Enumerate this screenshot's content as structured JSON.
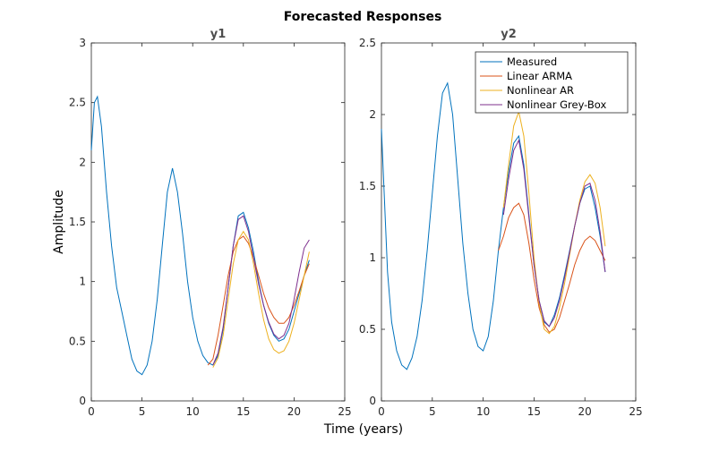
{
  "chart_data": {
    "type": "line",
    "title": "Forecasted Responses",
    "xlabel": "Time (years)",
    "ylabel": "Amplitude",
    "legend": {
      "placement": "top-right of y2 panel",
      "entries": [
        "Measured",
        "Linear ARMA",
        "Nonlinear AR",
        "Nonlinear Grey-Box"
      ]
    },
    "colors": {
      "Measured": "#0072bd",
      "Linear ARMA": "#d95319",
      "Nonlinear AR": "#edb120",
      "Nonlinear Grey-Box": "#7e2f8e"
    },
    "panels": [
      {
        "title": "y1",
        "xlim": [
          0,
          25
        ],
        "ylim": [
          0,
          3
        ],
        "xticks": [
          "0",
          "5",
          "10",
          "15",
          "20",
          "25"
        ],
        "yticks": [
          "0",
          "0.5",
          "1",
          "1.5",
          "2",
          "2.5",
          "3"
        ],
        "series": [
          {
            "name": "Measured",
            "x": [
              0,
              0.3,
              0.6,
              1,
              1.5,
              2,
              2.5,
              3,
              3.5,
              4,
              4.5,
              5,
              5.5,
              6,
              6.5,
              7,
              7.5,
              8,
              8.5,
              9,
              9.5,
              10,
              10.5,
              11,
              11.5,
              12,
              12.5,
              13,
              13.5,
              14,
              14.5,
              15,
              15.5,
              16,
              16.5,
              17,
              17.5,
              18,
              18.5,
              19,
              19.5,
              20,
              20.5,
              21,
              21.5
            ],
            "y": [
              2.1,
              2.5,
              2.55,
              2.3,
              1.75,
              1.3,
              0.95,
              0.75,
              0.55,
              0.35,
              0.25,
              0.22,
              0.3,
              0.5,
              0.85,
              1.3,
              1.75,
              1.95,
              1.75,
              1.4,
              1.0,
              0.7,
              0.5,
              0.38,
              0.32,
              0.3,
              0.38,
              0.6,
              0.95,
              1.3,
              1.55,
              1.58,
              1.45,
              1.25,
              1.0,
              0.8,
              0.65,
              0.55,
              0.5,
              0.52,
              0.6,
              0.75,
              0.9,
              1.05,
              1.18
            ]
          },
          {
            "name": "Linear ARMA",
            "x": [
              11.5,
              12,
              12.5,
              13,
              13.5,
              14,
              14.5,
              15,
              15.5,
              16,
              16.5,
              17,
              17.5,
              18,
              18.5,
              19,
              19.5,
              20,
              20.5,
              21,
              21.5
            ],
            "y": [
              0.3,
              0.35,
              0.55,
              0.8,
              1.05,
              1.25,
              1.35,
              1.38,
              1.32,
              1.2,
              1.05,
              0.9,
              0.78,
              0.7,
              0.65,
              0.65,
              0.7,
              0.8,
              0.92,
              1.05,
              1.15
            ]
          },
          {
            "name": "Nonlinear AR",
            "x": [
              12,
              12.5,
              13,
              13.5,
              14,
              14.5,
              15,
              15.5,
              16,
              16.5,
              17,
              17.5,
              18,
              18.5,
              19,
              19.5,
              20,
              20.5,
              21,
              21.5
            ],
            "y": [
              0.28,
              0.36,
              0.55,
              0.85,
              1.15,
              1.35,
              1.42,
              1.35,
              1.15,
              0.9,
              0.68,
              0.52,
              0.43,
              0.4,
              0.42,
              0.5,
              0.65,
              0.85,
              1.05,
              1.25
            ]
          },
          {
            "name": "Nonlinear Grey-Box",
            "x": [
              12,
              12.5,
              13,
              13.5,
              14,
              14.5,
              15,
              15.5,
              16,
              16.5,
              17,
              17.5,
              18,
              18.5,
              19,
              19.5,
              20,
              20.5,
              21,
              21.5
            ],
            "y": [
              0.3,
              0.4,
              0.62,
              0.95,
              1.3,
              1.52,
              1.55,
              1.42,
              1.2,
              0.98,
              0.8,
              0.66,
              0.56,
              0.52,
              0.55,
              0.65,
              0.85,
              1.08,
              1.28,
              1.35
            ]
          }
        ]
      },
      {
        "title": "y2",
        "xlim": [
          0,
          25
        ],
        "ylim": [
          0,
          2.5
        ],
        "xticks": [
          "0",
          "5",
          "10",
          "15",
          "20",
          "25"
        ],
        "yticks": [
          "0",
          "0.5",
          "1",
          "1.5",
          "2",
          "2.5"
        ],
        "series": [
          {
            "name": "Measured",
            "x": [
              0,
              0.3,
              0.6,
              1,
              1.5,
              2,
              2.5,
              3,
              3.5,
              4,
              4.5,
              5,
              5.5,
              6,
              6.5,
              7,
              7.5,
              8,
              8.5,
              9,
              9.5,
              10,
              10.5,
              11,
              11.5,
              12,
              12.5,
              13,
              13.5,
              14,
              14.5,
              15,
              15.5,
              16,
              16.5,
              17,
              17.5,
              18,
              18.5,
              19,
              19.5,
              20,
              20.5,
              21,
              21.5,
              22
            ],
            "y": [
              1.9,
              1.4,
              0.9,
              0.55,
              0.35,
              0.25,
              0.22,
              0.3,
              0.45,
              0.7,
              1.05,
              1.45,
              1.85,
              2.15,
              2.22,
              2.0,
              1.55,
              1.1,
              0.75,
              0.5,
              0.38,
              0.35,
              0.45,
              0.7,
              1.05,
              1.35,
              1.6,
              1.8,
              1.85,
              1.65,
              1.3,
              0.95,
              0.7,
              0.55,
              0.52,
              0.6,
              0.72,
              0.88,
              1.05,
              1.22,
              1.38,
              1.48,
              1.5,
              1.35,
              1.15,
              0.9
            ]
          },
          {
            "name": "Linear ARMA",
            "x": [
              11.5,
              12,
              12.5,
              13,
              13.5,
              14,
              14.5,
              15,
              15.5,
              16,
              16.5,
              17,
              17.5,
              18,
              18.5,
              19,
              19.5,
              20,
              20.5,
              21,
              21.5,
              22
            ],
            "y": [
              1.05,
              1.15,
              1.28,
              1.35,
              1.38,
              1.3,
              1.1,
              0.85,
              0.65,
              0.53,
              0.48,
              0.5,
              0.58,
              0.7,
              0.82,
              0.95,
              1.05,
              1.12,
              1.15,
              1.12,
              1.05,
              0.98
            ]
          },
          {
            "name": "Nonlinear AR",
            "x": [
              12,
              12.5,
              13,
              13.5,
              14,
              14.5,
              15,
              15.5,
              16,
              16.5,
              17,
              17.5,
              18,
              18.5,
              19,
              19.5,
              20,
              20.5,
              21,
              21.5,
              22
            ],
            "y": [
              1.35,
              1.65,
              1.92,
              2.02,
              1.85,
              1.45,
              1.0,
              0.68,
              0.5,
              0.47,
              0.52,
              0.65,
              0.82,
              1.02,
              1.22,
              1.4,
              1.53,
              1.58,
              1.52,
              1.35,
              1.08
            ]
          },
          {
            "name": "Nonlinear Grey-Box",
            "x": [
              12,
              12.5,
              13,
              13.5,
              14,
              14.5,
              15,
              15.5,
              16,
              16.5,
              17,
              17.5,
              18,
              18.5,
              19,
              19.5,
              20,
              20.5,
              21,
              21.5,
              22
            ],
            "y": [
              1.3,
              1.55,
              1.75,
              1.82,
              1.62,
              1.28,
              0.95,
              0.7,
              0.56,
              0.52,
              0.58,
              0.7,
              0.86,
              1.04,
              1.22,
              1.38,
              1.5,
              1.52,
              1.4,
              1.18,
              0.9
            ]
          }
        ]
      }
    ]
  }
}
